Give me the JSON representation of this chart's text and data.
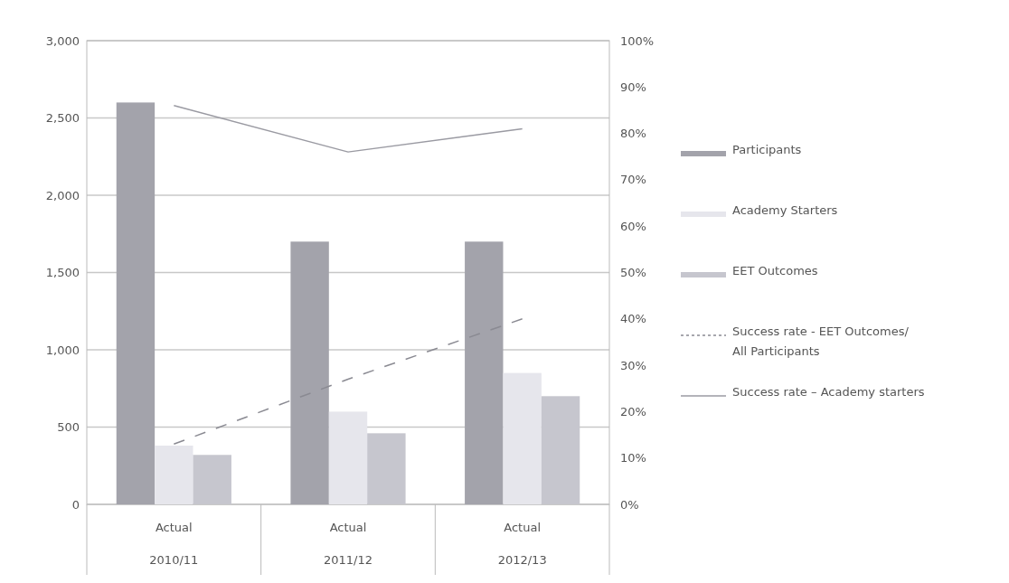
{
  "chart_data": {
    "type": "bar",
    "categories": [
      "Actual\n2010/11",
      "Actual\n2011/12",
      "Actual\n2012/13"
    ],
    "series": [
      {
        "name": "Participants",
        "color": "#a3a3ab",
        "values": [
          2600,
          1700,
          1700
        ]
      },
      {
        "name": "Academy Starters",
        "color": "#e6e6ec",
        "values": [
          380,
          600,
          850
        ]
      },
      {
        "name": "EET Outcomes",
        "color": "#c6c6ce",
        "values": [
          320,
          460,
          700
        ]
      },
      {
        "name": "Success rate - EET Outcomes/ All Participants",
        "type": "line",
        "axis": "y2",
        "line_style": "dashed",
        "color": "#8a8a92",
        "values": [
          13,
          27,
          40
        ]
      },
      {
        "name": "Success rate – Academy starters",
        "type": "line",
        "axis": "y2",
        "line_style": "solid",
        "color": "#9a9aa2",
        "values": [
          86,
          76,
          81
        ]
      }
    ],
    "ylim": [
      0,
      3000
    ],
    "yticks": [
      {
        "value": 0,
        "label": "0"
      },
      {
        "value": 500,
        "label": "500"
      },
      {
        "value": 1000,
        "label": "1,000"
      },
      {
        "value": 1500,
        "label": "1,500"
      },
      {
        "value": 2000,
        "label": "2,000"
      },
      {
        "value": 2500,
        "label": "2,500"
      },
      {
        "value": 3000,
        "label": "3,000"
      }
    ],
    "y2lim": [
      0,
      100
    ],
    "y2ticks": [
      {
        "value": 0,
        "label": "0%"
      },
      {
        "value": 10,
        "label": "10%"
      },
      {
        "value": 20,
        "label": "20%"
      },
      {
        "value": 30,
        "label": "30%"
      },
      {
        "value": 40,
        "label": "40%"
      },
      {
        "value": 50,
        "label": "50%"
      },
      {
        "value": 60,
        "label": "60%"
      },
      {
        "value": 70,
        "label": "70%"
      },
      {
        "value": 80,
        "label": "80%"
      },
      {
        "value": 90,
        "label": "90%"
      },
      {
        "value": 100,
        "label": "100%"
      }
    ],
    "grid": "y",
    "legend": "right"
  }
}
